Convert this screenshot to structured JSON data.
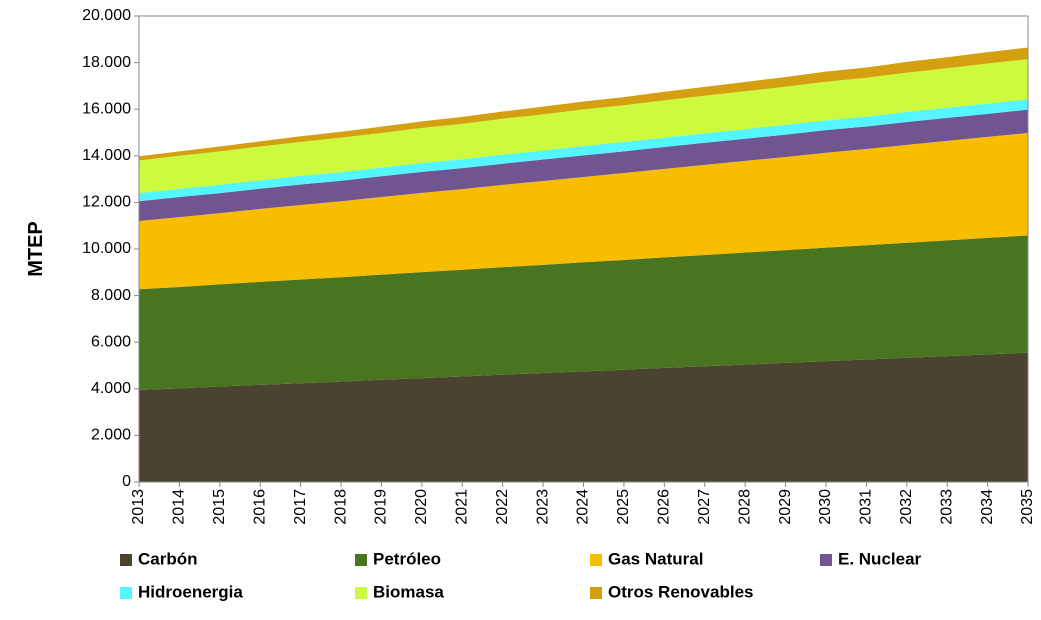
{
  "chart_data": {
    "type": "stacked_area",
    "y_label": "MTEP",
    "categories": [
      "2013",
      "2014",
      "2015",
      "2016",
      "2017",
      "2018",
      "2019",
      "2020",
      "2021",
      "2022",
      "2023",
      "2024",
      "2025",
      "2026",
      "2027",
      "2028",
      "2029",
      "2030",
      "2031",
      "2032",
      "2033",
      "2034",
      "2035"
    ],
    "series": [
      {
        "name": "Carbón",
        "color": "#4a4330",
        "values": [
          3950,
          4020,
          4100,
          4170,
          4240,
          4310,
          4390,
          4460,
          4530,
          4610,
          4680,
          4750,
          4820,
          4900,
          4970,
          5040,
          5110,
          5190,
          5260,
          5330,
          5400,
          5480,
          5550
        ]
      },
      {
        "name": "Petróleo",
        "color": "#4a7520",
        "values": [
          4320,
          4350,
          4380,
          4420,
          4450,
          4480,
          4510,
          4550,
          4580,
          4610,
          4640,
          4680,
          4710,
          4740,
          4770,
          4810,
          4840,
          4870,
          4900,
          4940,
          4970,
          5000,
          5030
        ]
      },
      {
        "name": "Gas Natural",
        "color": "#f9bd00",
        "values": [
          2930,
          3000,
          3060,
          3130,
          3200,
          3260,
          3330,
          3400,
          3460,
          3530,
          3600,
          3660,
          3730,
          3800,
          3870,
          3930,
          4000,
          4070,
          4130,
          4200,
          4270,
          4330,
          4400
        ]
      },
      {
        "name": "E. Nuclear",
        "color": "#705590",
        "values": [
          850,
          860,
          860,
          870,
          880,
          880,
          890,
          900,
          900,
          910,
          920,
          930,
          930,
          940,
          950,
          950,
          960,
          970,
          970,
          980,
          990,
          990,
          1000
        ]
      },
      {
        "name": "Hidroenergia",
        "color": "#55f5ff",
        "values": [
          350,
          350,
          360,
          360,
          370,
          370,
          370,
          380,
          380,
          390,
          390,
          400,
          400,
          400,
          410,
          410,
          420,
          420,
          420,
          430,
          430,
          440,
          440
        ]
      },
      {
        "name": "Biomasa",
        "color": "#ccfa3c",
        "values": [
          1400,
          1420,
          1430,
          1450,
          1460,
          1480,
          1490,
          1510,
          1520,
          1540,
          1550,
          1570,
          1580,
          1600,
          1610,
          1630,
          1640,
          1660,
          1670,
          1690,
          1700,
          1720,
          1730
        ]
      },
      {
        "name": "Otros Renovables",
        "color": "#d4a010",
        "values": [
          180,
          190,
          210,
          220,
          240,
          250,
          270,
          280,
          300,
          310,
          330,
          340,
          350,
          370,
          380,
          400,
          410,
          430,
          440,
          460,
          470,
          490,
          500
        ]
      }
    ],
    "ylim": [
      0,
      20000
    ],
    "yticks": [
      0,
      {
        "value": 2000,
        "label": "2.000"
      },
      {
        "value": 4000,
        "label": "4.000"
      },
      {
        "value": 6000,
        "label": "6.000"
      },
      {
        "value": 8000,
        "label": "8.000"
      },
      {
        "value": 10000,
        "label": "10.000"
      },
      {
        "value": 12000,
        "label": "12.000"
      },
      {
        "value": 14000,
        "label": "14.000"
      },
      {
        "value": 16000,
        "label": "16.000"
      },
      {
        "value": 18000,
        "label": "18.000"
      },
      {
        "value": 20000,
        "label": "20.000"
      }
    ],
    "grid": false
  }
}
